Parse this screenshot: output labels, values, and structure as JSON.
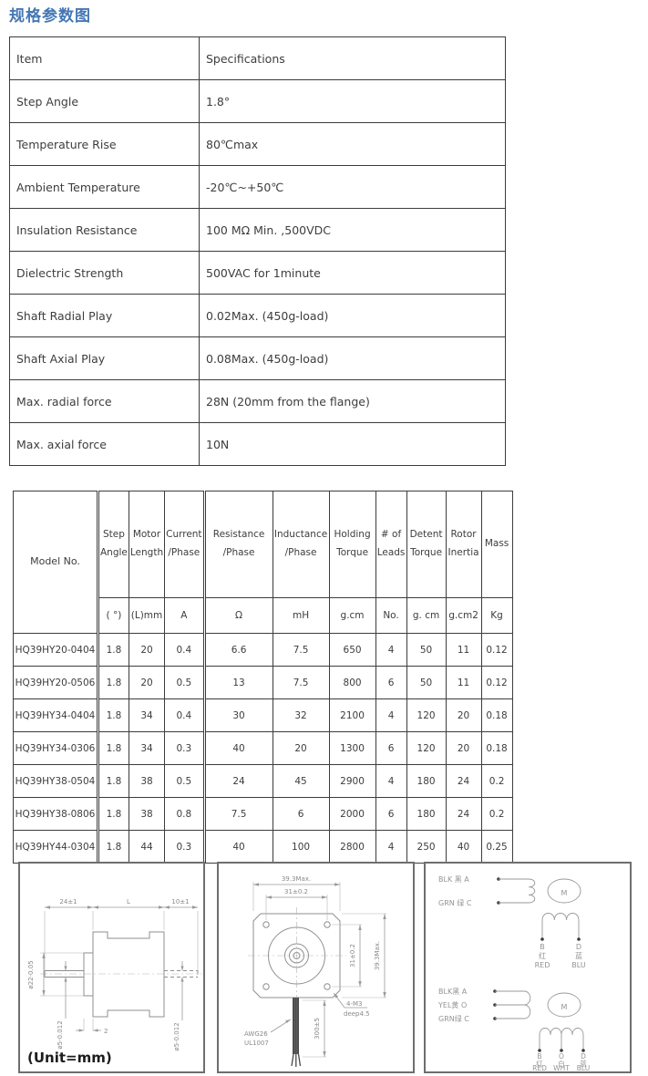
{
  "page": {
    "title": "规格参数图",
    "accent_color": "#4577b5"
  },
  "spec_table": {
    "headers": [
      "Item",
      "Specifications"
    ],
    "rows": [
      [
        "Step Angle",
        "1.8°"
      ],
      [
        "Temperature Rise",
        "80℃max"
      ],
      [
        "Ambient Temperature",
        "-20℃~+50℃"
      ],
      [
        "Insulation Resistance",
        "100 MΩ Min. ,500VDC"
      ],
      [
        "Dielectric Strength",
        "500VAC for 1minute"
      ],
      [
        "Shaft Radial Play",
        "0.02Max. (450g-load)"
      ],
      [
        "Shaft Axial Play",
        "0.08Max. (450g-load)"
      ],
      [
        "Max. radial force",
        "28N (20mm from the flange)"
      ],
      [
        "Max. axial force",
        "10N"
      ]
    ]
  },
  "model_table": {
    "columns": [
      {
        "label_lines": [
          "Model No."
        ],
        "unit": ""
      },
      {
        "label_lines": [
          "Step",
          "Angle"
        ],
        "unit": "( °)"
      },
      {
        "label_lines": [
          "Motor",
          "Length"
        ],
        "unit": "(L)mm"
      },
      {
        "label_lines": [
          "Current",
          "/Phase"
        ],
        "unit": "A"
      },
      {
        "label_lines": [
          "Resistance",
          "/Phase"
        ],
        "unit": "Ω"
      },
      {
        "label_lines": [
          "Inductance",
          "/Phase"
        ],
        "unit": "mH"
      },
      {
        "label_lines": [
          "Holding",
          "Torque"
        ],
        "unit": "g.cm"
      },
      {
        "label_lines": [
          "# of",
          "Leads"
        ],
        "unit": "No."
      },
      {
        "label_lines": [
          "Detent",
          "Torque"
        ],
        "unit": "g. cm"
      },
      {
        "label_lines": [
          "Rotor",
          "Inertia"
        ],
        "unit": "g.cm2"
      },
      {
        "label_lines": [
          "Mass"
        ],
        "unit": "Kg"
      }
    ],
    "rows": [
      [
        "HQ39HY20-0404",
        "1.8",
        "20",
        "0.4",
        "6.6",
        "7.5",
        "650",
        "4",
        "50",
        "11",
        "0.12"
      ],
      [
        "HQ39HY20-0506",
        "1.8",
        "20",
        "0.5",
        "13",
        "7.5",
        "800",
        "6",
        "50",
        "11",
        "0.12"
      ],
      [
        "HQ39HY34-0404",
        "1.8",
        "34",
        "0.4",
        "30",
        "32",
        "2100",
        "4",
        "120",
        "20",
        "0.18"
      ],
      [
        "HQ39HY34-0306",
        "1.8",
        "34",
        "0.3",
        "40",
        "20",
        "1300",
        "6",
        "120",
        "20",
        "0.18"
      ],
      [
        "HQ39HY38-0504",
        "1.8",
        "38",
        "0.5",
        "24",
        "45",
        "2900",
        "4",
        "180",
        "24",
        "0.2"
      ],
      [
        "HQ39HY38-0806",
        "1.8",
        "38",
        "0.8",
        "7.5",
        "6",
        "2000",
        "6",
        "180",
        "24",
        "0.2"
      ],
      [
        "HQ39HY44-0304",
        "1.8",
        "44",
        "0.3",
        "40",
        "100",
        "2800",
        "4",
        "250",
        "40",
        "0.25"
      ]
    ]
  },
  "drawings": {
    "side_view": {
      "dim_front_shaft": "24±1",
      "dim_body_length": "L",
      "dim_rear_shaft": "10±1",
      "dim_pilot_dia": "ø22-0.05",
      "dim_shaft_dia_front": "ø5-0.012",
      "dim_shaft_dia_rear": "ø5-0.012",
      "dim_pilot_depth": "2",
      "unit_label": "(Unit=mm)"
    },
    "front_view": {
      "dim_width": "39.3Max.",
      "dim_hole_spacing_top": "31±0.2",
      "dim_hole_spacing_side": "31±0.2",
      "dim_height": "39.3Max.",
      "mount_hole_label": "4-M3",
      "mount_hole_depth": "deep4.5",
      "wire_gauge": "AWG26",
      "wire_spec": "UL1007",
      "lead_length": "300±5"
    },
    "wiring": {
      "four_lead": {
        "leads": [
          "BLK 黑 A",
          "GRN 绿 C"
        ],
        "motor_label": "M",
        "terminals": [
          {
            "pin": "B",
            "cn": "红",
            "en": "RED"
          },
          {
            "pin": "D",
            "cn": "蓝",
            "en": "BLU"
          }
        ]
      },
      "six_lead": {
        "leads": [
          "BLK黑 A",
          "YEL黄 O",
          "GRN绿 C"
        ],
        "motor_label": "M",
        "terminals": [
          {
            "pin": "B",
            "cn": "红",
            "en": "RED"
          },
          {
            "pin": "O",
            "cn": "白",
            "en": "WHT"
          },
          {
            "pin": "D",
            "cn": "蓝",
            "en": "BLU"
          }
        ]
      }
    }
  }
}
